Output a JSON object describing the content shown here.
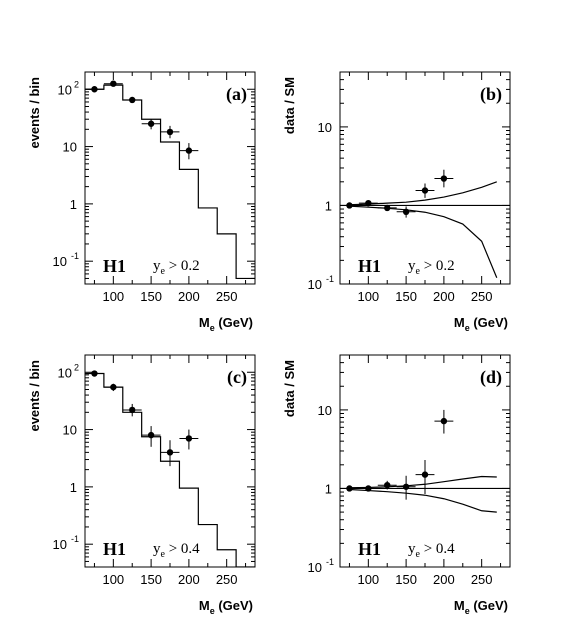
{
  "chart_data": [
    {
      "id": "a",
      "type": "line",
      "panel_label": "(a)",
      "experiment": "H1",
      "cut_var": "y",
      "cut_sub": "e",
      "cut_rest": " > 0.2",
      "ylabel": "events / bin",
      "xlabel": "M",
      "xlabel_sub": "e",
      "xlabel_unit": "  (GeV)",
      "xlim": [
        62.5,
        287.5
      ],
      "ylim": [
        0.04,
        200
      ],
      "log_y": true,
      "x_ticks": [
        100,
        150,
        200,
        250
      ],
      "x_tick_labels": [
        "100",
        "150",
        "200",
        "250"
      ],
      "y_ticks": [
        0.1,
        1,
        10,
        100
      ],
      "y_tick_labels": [
        {
          "base": "10",
          "exp": "-1"
        },
        {
          "base": "1",
          "exp": ""
        },
        {
          "base": "10",
          "exp": ""
        },
        {
          "base": "10",
          "exp": "2"
        }
      ],
      "sm_histogram": {
        "edges": [
          62.5,
          87.5,
          112.5,
          137.5,
          162.5,
          187.5,
          212.5,
          237.5,
          262.5,
          287.5
        ],
        "values": [
          100,
          118,
          65,
          30,
          12,
          4,
          0.85,
          0.3,
          0.05
        ]
      },
      "data_points": {
        "x": [
          75,
          100,
          125,
          150,
          175,
          200
        ],
        "y": [
          100,
          125,
          65,
          25,
          18,
          8.5
        ],
        "y_low": [
          92,
          115,
          58,
          20,
          14,
          6
        ],
        "y_high": [
          108,
          135,
          72,
          30,
          23,
          11.5
        ]
      }
    },
    {
      "id": "b",
      "type": "line",
      "panel_label": "(b)",
      "experiment": "H1",
      "cut_var": "y",
      "cut_sub": "e",
      "cut_rest": " > 0.2",
      "ylabel": "data / SM",
      "xlabel": "M",
      "xlabel_sub": "e",
      "xlabel_unit": "  (GeV)",
      "xlim": [
        62.5,
        287.5
      ],
      "ylim": [
        0.1,
        50
      ],
      "log_y": true,
      "x_ticks": [
        100,
        150,
        200,
        250
      ],
      "x_tick_labels": [
        "100",
        "150",
        "200",
        "250"
      ],
      "y_ticks": [
        0.1,
        1,
        10
      ],
      "y_tick_labels": [
        {
          "base": "10",
          "exp": "-1"
        },
        {
          "base": "1",
          "exp": ""
        },
        {
          "base": "10",
          "exp": ""
        }
      ],
      "reference_line": 1,
      "band": {
        "x": [
          75,
          100,
          125,
          150,
          175,
          200,
          225,
          250,
          270
        ],
        "upper": [
          1.02,
          1.04,
          1.07,
          1.1,
          1.17,
          1.28,
          1.45,
          1.7,
          2.0
        ],
        "lower": [
          0.98,
          0.95,
          0.92,
          0.88,
          0.82,
          0.72,
          0.58,
          0.35,
          0.12
        ]
      },
      "data_points": {
        "x": [
          75,
          100,
          125,
          150,
          175,
          200
        ],
        "y": [
          1.0,
          1.07,
          0.93,
          0.83,
          1.55,
          2.2
        ],
        "y_low": [
          0.95,
          1.0,
          0.85,
          0.7,
          1.25,
          1.7
        ],
        "y_high": [
          1.05,
          1.13,
          1.01,
          0.97,
          1.9,
          2.85
        ]
      }
    },
    {
      "id": "c",
      "type": "line",
      "panel_label": "(c)",
      "experiment": "H1",
      "cut_var": "y",
      "cut_sub": "e",
      "cut_rest": " > 0.4",
      "ylabel": "events / bin",
      "xlabel": "M",
      "xlabel_sub": "e",
      "xlabel_unit": "  (GeV)",
      "xlim": [
        62.5,
        287.5
      ],
      "ylim": [
        0.04,
        200
      ],
      "log_y": true,
      "x_ticks": [
        100,
        150,
        200,
        250
      ],
      "x_tick_labels": [
        "100",
        "150",
        "200",
        "250"
      ],
      "y_ticks": [
        0.1,
        1,
        10,
        100
      ],
      "y_tick_labels": [
        {
          "base": "10",
          "exp": "-1"
        },
        {
          "base": "1",
          "exp": ""
        },
        {
          "base": "10",
          "exp": ""
        },
        {
          "base": "10",
          "exp": "2"
        }
      ],
      "sm_histogram": {
        "edges": [
          62.5,
          87.5,
          112.5,
          137.5,
          162.5,
          187.5,
          212.5,
          237.5,
          262.5,
          287.5
        ],
        "values": [
          95,
          55,
          20,
          7.5,
          2.8,
          0.95,
          0.22,
          0.08,
          0.04
        ]
      },
      "data_points": {
        "x": [
          75,
          100,
          125,
          150,
          175,
          200
        ],
        "y": [
          95,
          55,
          22,
          8,
          4,
          7
        ],
        "y_low": [
          85,
          47,
          17,
          5,
          2.3,
          4.5
        ],
        "y_high": [
          105,
          63,
          28,
          11.5,
          6.5,
          10
        ]
      }
    },
    {
      "id": "d",
      "type": "line",
      "panel_label": "(d)",
      "experiment": "H1",
      "cut_var": "y",
      "cut_sub": "e",
      "cut_rest": " > 0.4",
      "ylabel": "data / SM",
      "xlabel": "M",
      "xlabel_sub": "e",
      "xlabel_unit": "  (GeV)",
      "xlim": [
        62.5,
        287.5
      ],
      "ylim": [
        0.1,
        50
      ],
      "log_y": true,
      "x_ticks": [
        100,
        150,
        200,
        250
      ],
      "x_tick_labels": [
        "100",
        "150",
        "200",
        "250"
      ],
      "y_ticks": [
        0.1,
        1,
        10
      ],
      "y_tick_labels": [
        {
          "base": "10",
          "exp": "-1"
        },
        {
          "base": "1",
          "exp": ""
        },
        {
          "base": "10",
          "exp": ""
        }
      ],
      "reference_line": 1,
      "band": {
        "x": [
          75,
          100,
          125,
          150,
          175,
          200,
          225,
          250,
          270
        ],
        "upper": [
          1.02,
          1.03,
          1.05,
          1.08,
          1.13,
          1.22,
          1.32,
          1.42,
          1.4
        ],
        "lower": [
          0.97,
          0.94,
          0.91,
          0.87,
          0.82,
          0.74,
          0.63,
          0.52,
          0.5
        ]
      },
      "data_points": {
        "x": [
          75,
          100,
          125,
          150,
          175,
          200
        ],
        "y": [
          1.0,
          1.0,
          1.1,
          1.05,
          1.5,
          7.2
        ],
        "y_low": [
          0.95,
          0.92,
          0.97,
          0.72,
          0.85,
          5.0
        ],
        "y_high": [
          1.05,
          1.08,
          1.25,
          1.45,
          2.3,
          10.0
        ]
      }
    }
  ]
}
